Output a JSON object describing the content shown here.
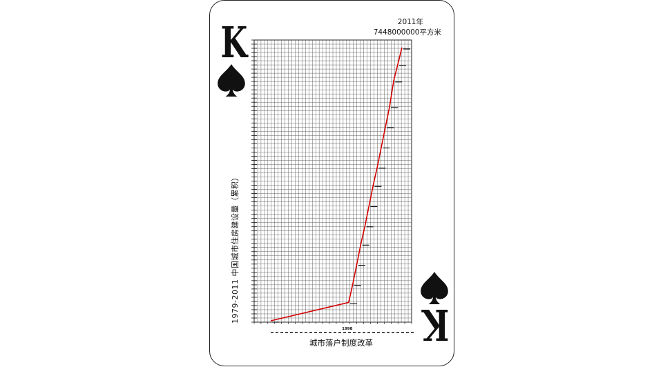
{
  "card": {
    "rank": "K",
    "suit_icon": "spade-icon",
    "ink_color": "#111111"
  },
  "annotations": {
    "end_year": "2011年",
    "end_value": "7448000000平方米",
    "y_axis_title": "1979-2011  中国城市住房建设量（累积）",
    "x_marker_year": "1998",
    "reform_caption": "城市落户制度改革"
  },
  "chart_data": {
    "type": "line",
    "title": "1979-2011 中国城市住房建设量（累积）",
    "xlabel": "",
    "ylabel": "中国城市住房建设量（累积）",
    "line_color": "#d40000",
    "x_range": [
      1979,
      2011
    ],
    "y_range": [
      0,
      7448000000
    ],
    "grid": true,
    "annotated_points": [
      {
        "year": 1998,
        "label": "1998"
      },
      {
        "year": 2011,
        "label": "2011年",
        "value_label": "7448000000平方米"
      }
    ],
    "series": [
      {
        "name": "累积住房建设量",
        "x": [
          1979,
          1998,
          1999,
          2000,
          2001,
          2002,
          2003,
          2004,
          2005,
          2006,
          2007,
          2008,
          2009,
          2010,
          2011
        ],
        "values": [
          0,
          500000000,
          1000000000,
          1550000000,
          2100000000,
          2600000000,
          3150000000,
          3700000000,
          4200000000,
          4750000000,
          5300000000,
          5850000000,
          6550000000,
          7000000000,
          7448000000
        ]
      }
    ]
  }
}
